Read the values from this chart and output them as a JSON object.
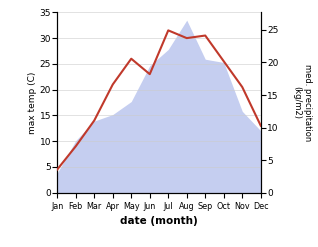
{
  "months": [
    "Jan",
    "Feb",
    "Mar",
    "Apr",
    "May",
    "Jun",
    "Jul",
    "Aug",
    "Sep",
    "Oct",
    "Nov",
    "Dec"
  ],
  "month_indices": [
    0,
    1,
    2,
    3,
    4,
    5,
    6,
    7,
    8,
    9,
    10,
    11
  ],
  "temperature": [
    4.5,
    9.0,
    14.0,
    21.0,
    26.0,
    23.0,
    31.5,
    30.0,
    30.5,
    25.5,
    20.5,
    13.0
  ],
  "precipitation": [
    3.0,
    8.0,
    11.0,
    12.0,
    14.0,
    19.5,
    22.0,
    26.5,
    20.5,
    20.0,
    12.5,
    9.5
  ],
  "temp_color": "#c0392b",
  "precip_fill_color": "#c5cef0",
  "temp_ylim": [
    0,
    35
  ],
  "precip_ylim": [
    0,
    27.7
  ],
  "temp_yticks": [
    0,
    5,
    10,
    15,
    20,
    25,
    30,
    35
  ],
  "precip_yticks": [
    0,
    5,
    10,
    15,
    20,
    25
  ],
  "xlabel": "date (month)",
  "ylabel_left": "max temp (C)",
  "ylabel_right": "med. precipitation\n(kg/m2)",
  "bg_color": "#ffffff"
}
